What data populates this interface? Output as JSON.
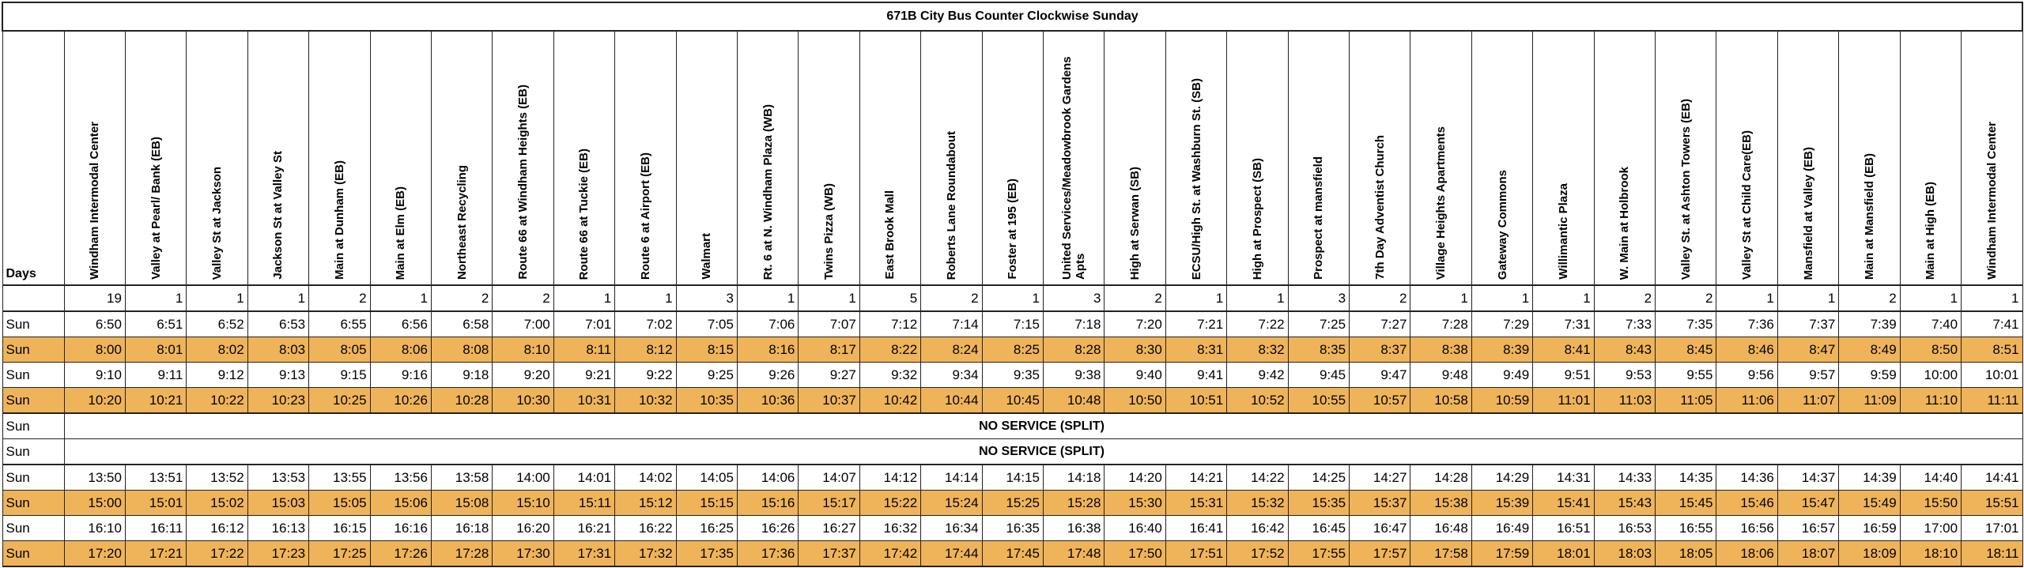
{
  "title": "671B City Bus Counter Clockwise Sunday",
  "days_label": "Days",
  "highlight_color": "#efb459",
  "stops": [
    "Windham Intermodal Center",
    "Valley at Pearl/ Bank (EB)",
    "Valley St at Jackson",
    "Jackson St at Valley St",
    "Main at Dunham (EB)",
    "Main at Elm (EB)",
    "Northeast Recycling",
    "Route 66 at Windham Heights (EB)",
    "Route 66 at Tuckie (EB)",
    "Route 6 at Airport (EB)",
    "Walmart",
    "Rt. 6 at N. Windham Plaza (WB)",
    "Twins Pizza (WB)",
    "East Brook Mall",
    "Roberts Lane Roundabout",
    "Foster at 195 (EB)",
    "United Services/Meadowbrook Gardens Apts",
    "High at Serwan (SB)",
    "ECSU/High St. at Washburn St. (SB)",
    "High at Prospect (SB)",
    "Prospect at mansfield",
    "7th Day Adventist Church",
    "Village Heights Apartments",
    "Gateway Commons",
    "Willimantic Plaza",
    "W. Main at Holbrook",
    "Valley St. at Ashton Towers (EB)",
    "Valley St at Child Care(EB)",
    "Mansfield at Valley (EB)",
    "Main at Mansfield (EB)",
    "Main at High (EB)",
    "Windham Intermodal Center"
  ],
  "counts": [
    "19",
    "1",
    "1",
    "1",
    "2",
    "1",
    "2",
    "2",
    "1",
    "1",
    "3",
    "1",
    "1",
    "5",
    "2",
    "1",
    "3",
    "2",
    "1",
    "1",
    "3",
    "2",
    "1",
    "1",
    "1",
    "2",
    "2",
    "1",
    "1",
    "2",
    "1",
    "1"
  ],
  "trips": [
    {
      "day": "Sun",
      "highlight": false,
      "times": [
        "6:50",
        "6:51",
        "6:52",
        "6:53",
        "6:55",
        "6:56",
        "6:58",
        "7:00",
        "7:01",
        "7:02",
        "7:05",
        "7:06",
        "7:07",
        "7:12",
        "7:14",
        "7:15",
        "7:18",
        "7:20",
        "7:21",
        "7:22",
        "7:25",
        "7:27",
        "7:28",
        "7:29",
        "7:31",
        "7:33",
        "7:35",
        "7:36",
        "7:37",
        "7:39",
        "7:40",
        "7:41"
      ]
    },
    {
      "day": "Sun",
      "highlight": true,
      "times": [
        "8:00",
        "8:01",
        "8:02",
        "8:03",
        "8:05",
        "8:06",
        "8:08",
        "8:10",
        "8:11",
        "8:12",
        "8:15",
        "8:16",
        "8:17",
        "8:22",
        "8:24",
        "8:25",
        "8:28",
        "8:30",
        "8:31",
        "8:32",
        "8:35",
        "8:37",
        "8:38",
        "8:39",
        "8:41",
        "8:43",
        "8:45",
        "8:46",
        "8:47",
        "8:49",
        "8:50",
        "8:51"
      ]
    },
    {
      "day": "Sun",
      "highlight": false,
      "times": [
        "9:10",
        "9:11",
        "9:12",
        "9:13",
        "9:15",
        "9:16",
        "9:18",
        "9:20",
        "9:21",
        "9:22",
        "9:25",
        "9:26",
        "9:27",
        "9:32",
        "9:34",
        "9:35",
        "9:38",
        "9:40",
        "9:41",
        "9:42",
        "9:45",
        "9:47",
        "9:48",
        "9:49",
        "9:51",
        "9:53",
        "9:55",
        "9:56",
        "9:57",
        "9:59",
        "10:00",
        "10:01"
      ]
    },
    {
      "day": "Sun",
      "highlight": true,
      "times": [
        "10:20",
        "10:21",
        "10:22",
        "10:23",
        "10:25",
        "10:26",
        "10:28",
        "10:30",
        "10:31",
        "10:32",
        "10:35",
        "10:36",
        "10:37",
        "10:42",
        "10:44",
        "10:45",
        "10:48",
        "10:50",
        "10:51",
        "10:52",
        "10:55",
        "10:57",
        "10:58",
        "10:59",
        "11:01",
        "11:03",
        "11:05",
        "11:06",
        "11:07",
        "11:09",
        "11:10",
        "11:11"
      ]
    },
    {
      "day": "Sun",
      "highlight": false,
      "note": "NO SERVICE (SPLIT)"
    },
    {
      "day": "Sun",
      "highlight": false,
      "note": "NO SERVICE (SPLIT)"
    },
    {
      "day": "Sun",
      "highlight": false,
      "times": [
        "13:50",
        "13:51",
        "13:52",
        "13:53",
        "13:55",
        "13:56",
        "13:58",
        "14:00",
        "14:01",
        "14:02",
        "14:05",
        "14:06",
        "14:07",
        "14:12",
        "14:14",
        "14:15",
        "14:18",
        "14:20",
        "14:21",
        "14:22",
        "14:25",
        "14:27",
        "14:28",
        "14:29",
        "14:31",
        "14:33",
        "14:35",
        "14:36",
        "14:37",
        "14:39",
        "14:40",
        "14:41"
      ]
    },
    {
      "day": "Sun",
      "highlight": true,
      "times": [
        "15:00",
        "15:01",
        "15:02",
        "15:03",
        "15:05",
        "15:06",
        "15:08",
        "15:10",
        "15:11",
        "15:12",
        "15:15",
        "15:16",
        "15:17",
        "15:22",
        "15:24",
        "15:25",
        "15:28",
        "15:30",
        "15:31",
        "15:32",
        "15:35",
        "15:37",
        "15:38",
        "15:39",
        "15:41",
        "15:43",
        "15:45",
        "15:46",
        "15:47",
        "15:49",
        "15:50",
        "15:51"
      ]
    },
    {
      "day": "Sun",
      "highlight": false,
      "times": [
        "16:10",
        "16:11",
        "16:12",
        "16:13",
        "16:15",
        "16:16",
        "16:18",
        "16:20",
        "16:21",
        "16:22",
        "16:25",
        "16:26",
        "16:27",
        "16:32",
        "16:34",
        "16:35",
        "16:38",
        "16:40",
        "16:41",
        "16:42",
        "16:45",
        "16:47",
        "16:48",
        "16:49",
        "16:51",
        "16:53",
        "16:55",
        "16:56",
        "16:57",
        "16:59",
        "17:00",
        "17:01"
      ]
    },
    {
      "day": "Sun",
      "highlight": true,
      "times": [
        "17:20",
        "17:21",
        "17:22",
        "17:23",
        "17:25",
        "17:26",
        "17:28",
        "17:30",
        "17:31",
        "17:32",
        "17:35",
        "17:36",
        "17:37",
        "17:42",
        "17:44",
        "17:45",
        "17:48",
        "17:50",
        "17:51",
        "17:52",
        "17:55",
        "17:57",
        "17:58",
        "17:59",
        "18:01",
        "18:03",
        "18:05",
        "18:06",
        "18:07",
        "18:09",
        "18:10",
        "18:11"
      ]
    }
  ]
}
